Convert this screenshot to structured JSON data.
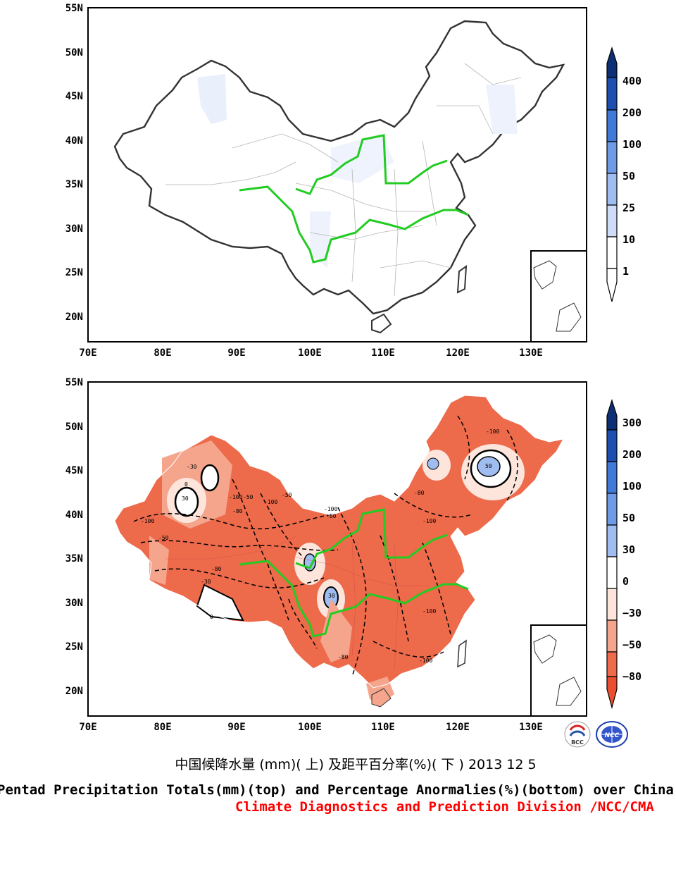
{
  "top_panel": {
    "lat_labels": [
      "55N",
      "50N",
      "45N",
      "40N",
      "35N",
      "30N",
      "25N",
      "20N"
    ],
    "lon_labels": [
      "70E",
      "80E",
      "90E",
      "100E",
      "110E",
      "120E",
      "130E"
    ],
    "colorbar": [
      "400",
      "200",
      "100",
      "50",
      "25",
      "10",
      "1"
    ],
    "colors": [
      "#0d2f73",
      "#1c4fb0",
      "#3f7ad9",
      "#6f9ae6",
      "#9fbdf0",
      "#cddcf7",
      "#ffffff"
    ]
  },
  "bottom_panel": {
    "lat_labels": [
      "55N",
      "50N",
      "45N",
      "40N",
      "35N",
      "30N",
      "25N",
      "20N"
    ],
    "lon_labels": [
      "70E",
      "80E",
      "90E",
      "100E",
      "110E",
      "120E",
      "130E"
    ],
    "colorbar": [
      "300",
      "200",
      "100",
      "50",
      "30",
      "0",
      "−30",
      "−50",
      "−80"
    ],
    "colors": [
      "#0d2f73",
      "#1c4fb0",
      "#3f7ad9",
      "#6f9ae6",
      "#9fbdf0",
      "#ffffff",
      "#fde5dc",
      "#f4a58c",
      "#f06b4b",
      "#e8502f"
    ]
  },
  "contour_labels": [
    "-100",
    "-80",
    "-50",
    "-30",
    "0",
    "30",
    "50",
    "-100",
    "-80",
    "-50",
    "-30",
    "0",
    "30",
    "-100",
    "-80",
    "-100",
    "-50",
    "-100",
    "-80",
    "-100",
    "-100",
    "-80",
    "-100"
  ],
  "caption": {
    "chinese": "中国候降水量 (mm)( 上) 及距平百分率(%)( 下 ) 2013 12 5",
    "english": "Pentad Precipitation Totals(mm)(top) and Percentage Anormalies(%)(bottom) over China",
    "division": "Climate Diagnostics and Prediction Division /NCC/CMA"
  },
  "logos": {
    "left": "BCC",
    "right": "NCC"
  }
}
